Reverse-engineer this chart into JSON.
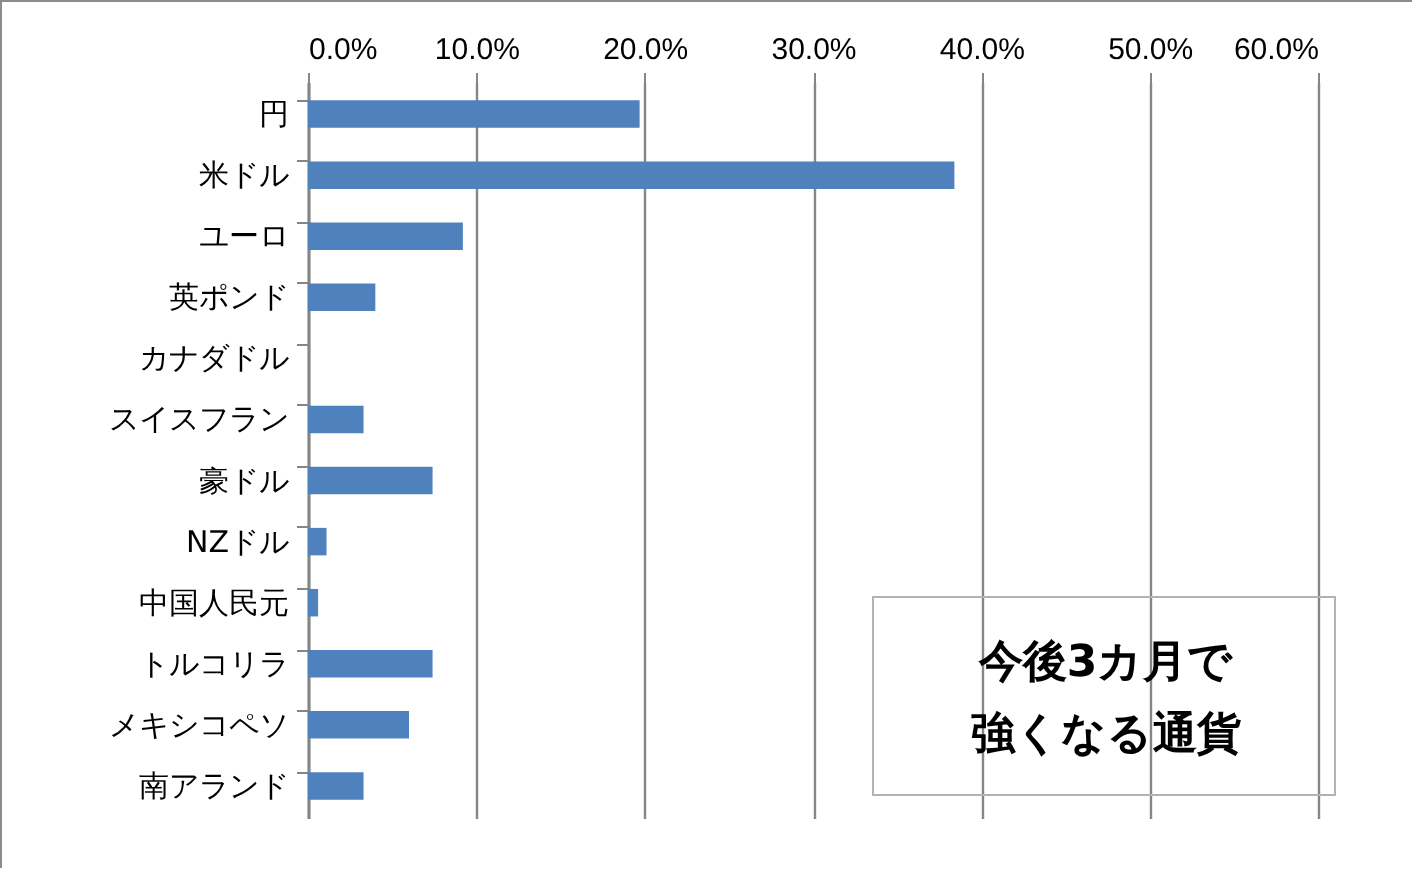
{
  "chart_data": {
    "type": "bar",
    "orientation": "horizontal",
    "categories": [
      "円",
      "米ドル",
      "ユーロ",
      "英ポンド",
      "カナダドル",
      "スイスフラン",
      "豪ドル",
      "NZドル",
      "中国人民元",
      "トルコリラ",
      "メキシコペソ",
      "南アランド"
    ],
    "values": [
      19.7,
      38.4,
      9.2,
      4.0,
      0,
      3.3,
      7.4,
      1.1,
      0.6,
      7.4,
      6.0,
      3.3
    ],
    "color": "#4f81bd",
    "xlim": [
      0,
      60
    ],
    "xticks": [
      {
        "value": 0,
        "label": "0.0%"
      },
      {
        "value": 10,
        "label": "10.0%"
      },
      {
        "value": 20,
        "label": "20.0%"
      },
      {
        "value": 30,
        "label": "30.0%"
      },
      {
        "value": 40,
        "label": "40.0%"
      },
      {
        "value": 50,
        "label": "50.0%"
      },
      {
        "value": 60,
        "label": "60.0%"
      }
    ],
    "grid": "x",
    "annotations": [
      "今後3カ月で",
      "強くなる通貨"
    ]
  }
}
